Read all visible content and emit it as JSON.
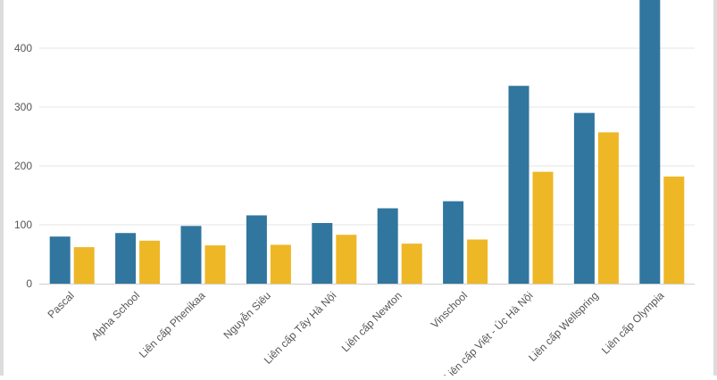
{
  "chart_data": {
    "type": "bar",
    "title": "",
    "xlabel": "",
    "ylabel": "",
    "categories": [
      "Pascal",
      "Alpha School",
      "Liên cấp Phenikaa",
      "Nguyễn Siêu",
      "Liên cấp Tây Hà Nội",
      "Liên cấp Newton",
      "Vinschool",
      "Liên cấp Việt - Úc Hà Nội",
      "Liên cấp Wellspring",
      "Liên cấp Olympia"
    ],
    "series": [
      {
        "color": "#31769e",
        "values": [
          80,
          86,
          98,
          116,
          103,
          128,
          140,
          336,
          290,
          495
        ]
      },
      {
        "color": "#eeb726",
        "values": [
          62,
          73,
          65,
          66,
          83,
          68,
          75,
          190,
          257,
          182
        ]
      }
    ],
    "ylim": [
      0,
      480
    ],
    "yticks": [
      0,
      100,
      200,
      300,
      400
    ],
    "grid": true,
    "legend": "none"
  }
}
